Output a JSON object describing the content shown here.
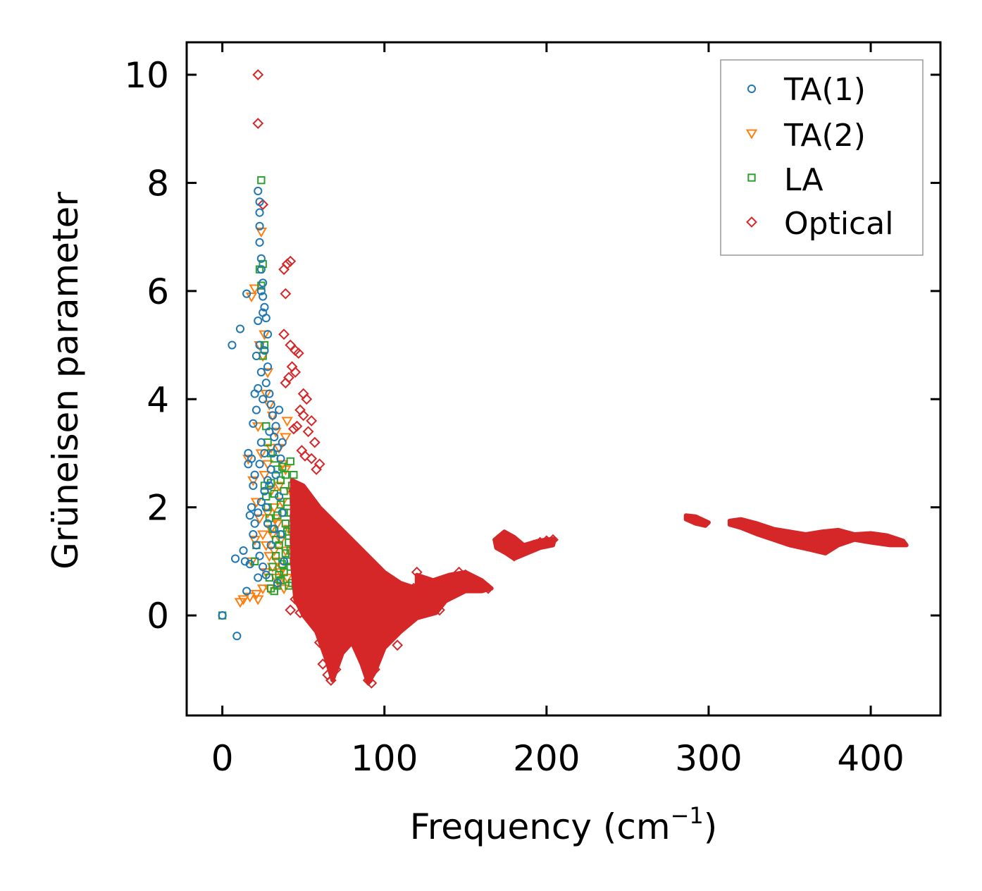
{
  "chart_data": {
    "type": "scatter",
    "title": "",
    "xlabel": "Frequency (cm",
    "xlabel_sup": "−1",
    "xlabel_close": ")",
    "ylabel": "Grüneisen parameter",
    "xlim": [
      -22,
      443
    ],
    "ylim": [
      -1.85,
      10.6
    ],
    "x_ticks": [
      0,
      100,
      200,
      300,
      400
    ],
    "x_tick_labels": [
      "0",
      "100",
      "200",
      "300",
      "400"
    ],
    "y_ticks": [
      0,
      2,
      4,
      6,
      8,
      10
    ],
    "y_tick_labels": [
      "0",
      "2",
      "4",
      "6",
      "8",
      "10"
    ],
    "legend_position": "top-right",
    "series": [
      {
        "name": "TA(1)",
        "marker": "circle",
        "color": "#1f77b4",
        "points": [
          [
            0,
            0
          ],
          [
            9,
            -0.38
          ],
          [
            6,
            5.0
          ],
          [
            11,
            5.3
          ],
          [
            15,
            5.95
          ],
          [
            8,
            1.05
          ],
          [
            13,
            1.2
          ],
          [
            14,
            1.0
          ],
          [
            15,
            0.45
          ],
          [
            17,
            0.95
          ],
          [
            16,
            2.8
          ],
          [
            18,
            2.9
          ],
          [
            19,
            3.55
          ],
          [
            20,
            4.1
          ],
          [
            21,
            4.8
          ],
          [
            22,
            5.45
          ],
          [
            22,
            7.85
          ],
          [
            23,
            7.65
          ],
          [
            23,
            7.45
          ],
          [
            23,
            7.2
          ],
          [
            23,
            6.9
          ],
          [
            24,
            6.6
          ],
          [
            24,
            6.4
          ],
          [
            25,
            6.15
          ],
          [
            25,
            5.9
          ],
          [
            26,
            5.7
          ],
          [
            27,
            5.5
          ],
          [
            28,
            5.2
          ],
          [
            26,
            4.9
          ],
          [
            28,
            4.6
          ],
          [
            27,
            4.3
          ],
          [
            29,
            4.1
          ],
          [
            30,
            3.9
          ],
          [
            31,
            3.7
          ],
          [
            33,
            3.5
          ],
          [
            32,
            3.3
          ],
          [
            34,
            3.1
          ],
          [
            36,
            2.9
          ],
          [
            30,
            2.7
          ],
          [
            28,
            2.5
          ],
          [
            26,
            2.3
          ],
          [
            24,
            2.1
          ],
          [
            22,
            1.9
          ],
          [
            20,
            1.7
          ],
          [
            19,
            1.5
          ],
          [
            21,
            1.3
          ],
          [
            23,
            1.1
          ],
          [
            25,
            0.9
          ],
          [
            27,
            0.75
          ],
          [
            22,
            0.7
          ],
          [
            18,
            2.0
          ],
          [
            17,
            1.85
          ],
          [
            20,
            2.6
          ],
          [
            24,
            3.2
          ],
          [
            26,
            3.0
          ],
          [
            29,
            3.4
          ],
          [
            31,
            3.0
          ],
          [
            33,
            2.6
          ],
          [
            35,
            2.2
          ],
          [
            37,
            1.9
          ],
          [
            36,
            1.5
          ],
          [
            38,
            1.0
          ],
          [
            34,
            0.6
          ],
          [
            30,
            1.3
          ],
          [
            28,
            1.7
          ],
          [
            25,
            4.0
          ],
          [
            24,
            4.5
          ],
          [
            23,
            5.0
          ],
          [
            25,
            5.6
          ],
          [
            24,
            6.0
          ],
          [
            22,
            4.2
          ],
          [
            21,
            3.8
          ],
          [
            19,
            2.4
          ],
          [
            16,
            3.0
          ],
          [
            27,
            2.0
          ],
          [
            29,
            2.4
          ],
          [
            32,
            1.6
          ],
          [
            35,
            3.8
          ],
          [
            37,
            3.2
          ],
          [
            23,
            2.8
          ]
        ]
      },
      {
        "name": "TA(2)",
        "marker": "triangle",
        "color": "#ff7f0e",
        "points": [
          [
            20,
            1.4
          ],
          [
            11,
            0.25
          ],
          [
            13,
            0.3
          ],
          [
            17,
            0.35
          ],
          [
            21,
            0.4
          ],
          [
            22,
            0.3
          ],
          [
            25,
            0.5
          ],
          [
            24,
            7.1
          ],
          [
            20,
            6.05
          ],
          [
            18,
            5.9
          ],
          [
            23,
            5.0
          ],
          [
            26,
            5.2
          ],
          [
            25,
            4.8
          ],
          [
            28,
            4.5
          ],
          [
            27,
            4.1
          ],
          [
            29,
            3.9
          ],
          [
            31,
            3.7
          ],
          [
            33,
            3.4
          ],
          [
            35,
            3.1
          ],
          [
            37,
            2.8
          ],
          [
            39,
            3.3
          ],
          [
            16,
            2.9
          ],
          [
            19,
            2.5
          ],
          [
            21,
            2.1
          ],
          [
            23,
            1.8
          ],
          [
            25,
            1.5
          ],
          [
            27,
            1.3
          ],
          [
            29,
            1.1
          ],
          [
            31,
            0.9
          ],
          [
            33,
            0.7
          ],
          [
            35,
            0.6
          ],
          [
            37,
            0.9
          ],
          [
            39,
            1.2
          ],
          [
            41,
            1.6
          ],
          [
            30,
            2.3
          ],
          [
            32,
            2.0
          ],
          [
            34,
            1.7
          ],
          [
            36,
            1.4
          ],
          [
            28,
            1.9
          ],
          [
            26,
            2.6
          ],
          [
            24,
            3.0
          ],
          [
            22,
            3.5
          ],
          [
            30,
            1.6
          ],
          [
            32,
            1.2
          ],
          [
            34,
            1.0
          ],
          [
            36,
            0.8
          ],
          [
            38,
            0.5
          ],
          [
            40,
            0.7
          ],
          [
            29,
            0.5
          ],
          [
            31,
            1.5
          ],
          [
            33,
            1.8
          ],
          [
            35,
            2.4
          ],
          [
            37,
            2.1
          ],
          [
            39,
            2.7
          ],
          [
            27,
            0.8
          ],
          [
            28,
            2.8
          ],
          [
            30,
            3.1
          ],
          [
            42,
            2.3
          ],
          [
            18,
            1.0
          ],
          [
            40,
            3.6
          ]
        ]
      },
      {
        "name": "LA",
        "marker": "square",
        "color": "#2ca02c",
        "points": [
          [
            0,
            0
          ],
          [
            24,
            8.05
          ],
          [
            23,
            6.4
          ],
          [
            25,
            6.5
          ],
          [
            24,
            6.1
          ],
          [
            26,
            5.0
          ],
          [
            25,
            4.8
          ],
          [
            27,
            3.5
          ],
          [
            28,
            3.2
          ],
          [
            30,
            3.0
          ],
          [
            32,
            2.9
          ],
          [
            34,
            2.7
          ],
          [
            36,
            2.5
          ],
          [
            38,
            2.3
          ],
          [
            40,
            2.1
          ],
          [
            42,
            2.85
          ],
          [
            44,
            2.6
          ],
          [
            43,
            2.4
          ],
          [
            41,
            1.9
          ],
          [
            39,
            1.7
          ],
          [
            37,
            1.5
          ],
          [
            35,
            1.3
          ],
          [
            33,
            1.1
          ],
          [
            31,
            0.9
          ],
          [
            29,
            0.7
          ],
          [
            30,
            0.5
          ],
          [
            32,
            0.45
          ],
          [
            34,
            0.55
          ],
          [
            36,
            0.65
          ],
          [
            38,
            0.8
          ],
          [
            40,
            1.0
          ],
          [
            42,
            1.2
          ],
          [
            44,
            1.4
          ],
          [
            43,
            1.6
          ],
          [
            41,
            1.35
          ],
          [
            39,
            1.15
          ],
          [
            37,
            0.95
          ],
          [
            35,
            0.75
          ],
          [
            33,
            1.4
          ],
          [
            31,
            1.6
          ],
          [
            29,
            1.8
          ],
          [
            28,
            2.0
          ],
          [
            27,
            2.2
          ],
          [
            26,
            2.4
          ],
          [
            38,
            1.9
          ],
          [
            40,
            1.55
          ],
          [
            42,
            0.9
          ],
          [
            44,
            1.8
          ],
          [
            20,
            1.0
          ],
          [
            21,
            1.3
          ],
          [
            36,
            2.05
          ],
          [
            34,
            1.85
          ],
          [
            32,
            2.25
          ],
          [
            30,
            2.45
          ],
          [
            44,
            2.15
          ],
          [
            43,
            0.6
          ],
          [
            45,
            1.1
          ],
          [
            41,
            0.55
          ],
          [
            39,
            2.6
          ],
          [
            37,
            2.75
          ]
        ]
      },
      {
        "name": "Optical",
        "marker": "diamond",
        "color": "#d62728",
        "points": [
          [
            22,
            10.0
          ],
          [
            22,
            9.1
          ],
          [
            25,
            7.6
          ],
          [
            40,
            6.5
          ],
          [
            42,
            6.55
          ],
          [
            38,
            6.4
          ],
          [
            39,
            5.95
          ],
          [
            38,
            5.2
          ],
          [
            42,
            5.0
          ],
          [
            45,
            4.9
          ],
          [
            47,
            4.85
          ],
          [
            43,
            4.6
          ],
          [
            45,
            4.5
          ],
          [
            39,
            4.3
          ],
          [
            41,
            4.4
          ],
          [
            50,
            4.1
          ],
          [
            52,
            4.0
          ],
          [
            48,
            3.8
          ],
          [
            50,
            3.7
          ],
          [
            46,
            3.5
          ],
          [
            44,
            3.45
          ],
          [
            55,
            3.6
          ],
          [
            53,
            3.4
          ],
          [
            57,
            3.2
          ],
          [
            49,
            3.05
          ],
          [
            51,
            2.95
          ],
          [
            55,
            2.9
          ],
          [
            60,
            2.8
          ],
          [
            58,
            2.7
          ],
          [
            44,
            2.3
          ],
          [
            42,
            0.1
          ],
          [
            45,
            0.3
          ],
          [
            48,
            0.05
          ],
          [
            60,
            -0.5
          ],
          [
            62,
            -0.9
          ],
          [
            65,
            -1.1
          ],
          [
            67,
            -1.2
          ],
          [
            70,
            -1.0
          ],
          [
            72,
            -0.7
          ],
          [
            75,
            -0.4
          ],
          [
            78,
            -0.2
          ],
          [
            80,
            0.1
          ],
          [
            82,
            -0.3
          ],
          [
            85,
            -0.6
          ],
          [
            88,
            -0.9
          ],
          [
            90,
            -1.2
          ],
          [
            92,
            -1.25
          ],
          [
            94,
            -1.0
          ],
          [
            96,
            -0.7
          ],
          [
            98,
            -0.4
          ],
          [
            100,
            -0.2
          ],
          [
            103,
            -0.1
          ],
          [
            106,
            -0.3
          ],
          [
            108,
            -0.55
          ],
          [
            112,
            0.0
          ],
          [
            115,
            0.2
          ],
          [
            118,
            0.5
          ],
          [
            120,
            0.8
          ],
          [
            125,
            0.55
          ],
          [
            130,
            0.3
          ],
          [
            134,
            0.1
          ],
          [
            138,
            0.5
          ],
          [
            142,
            0.7
          ],
          [
            146,
            0.8
          ],
          [
            150,
            0.75
          ],
          [
            155,
            0.65
          ],
          [
            160,
            0.55
          ],
          [
            164,
            0.5
          ],
          [
            170,
            1.4
          ],
          [
            172,
            1.3
          ],
          [
            176,
            1.2
          ],
          [
            180,
            1.1
          ],
          [
            184,
            1.2
          ],
          [
            188,
            1.25
          ],
          [
            192,
            1.3
          ],
          [
            196,
            1.35
          ],
          [
            200,
            1.38
          ],
          [
            204,
            1.4
          ],
          [
            174,
            1.45
          ],
          [
            178,
            1.35
          ]
        ]
      }
    ]
  }
}
